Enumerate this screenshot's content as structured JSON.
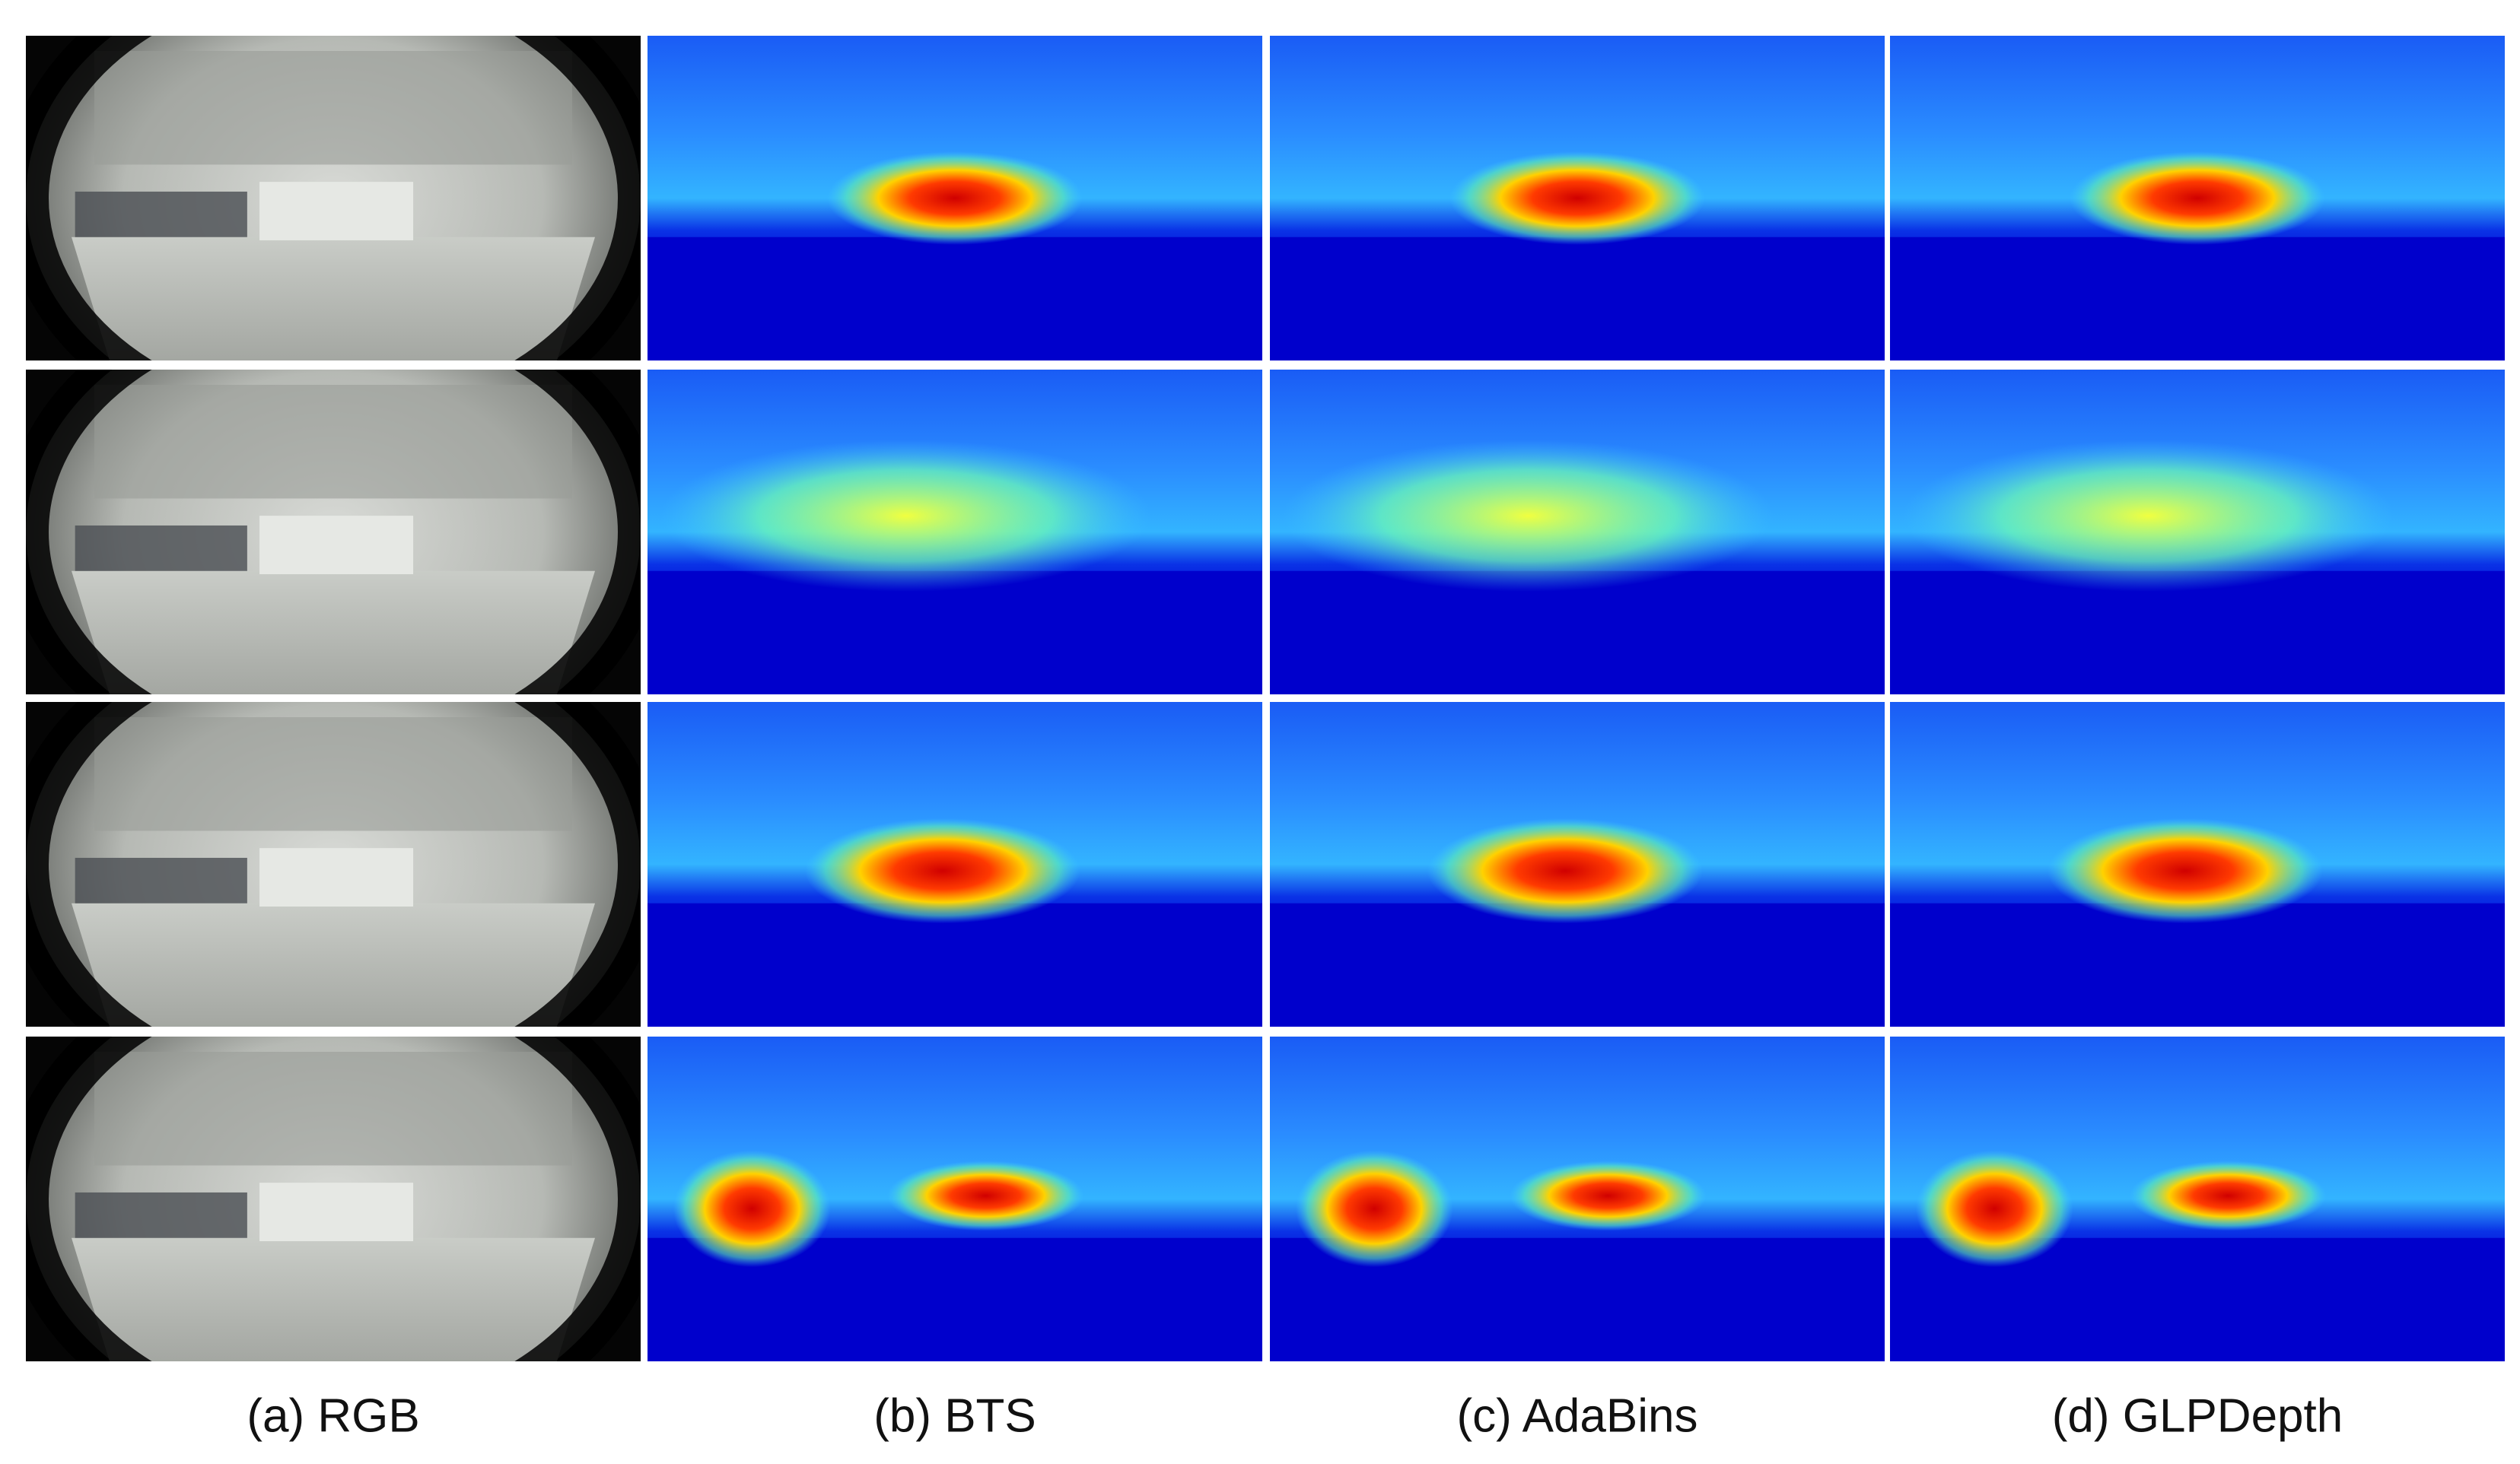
{
  "captions": [
    "(a) RGB",
    "(b) BTS",
    "(c) AdaBins",
    "(d) GLPDepth"
  ]
}
